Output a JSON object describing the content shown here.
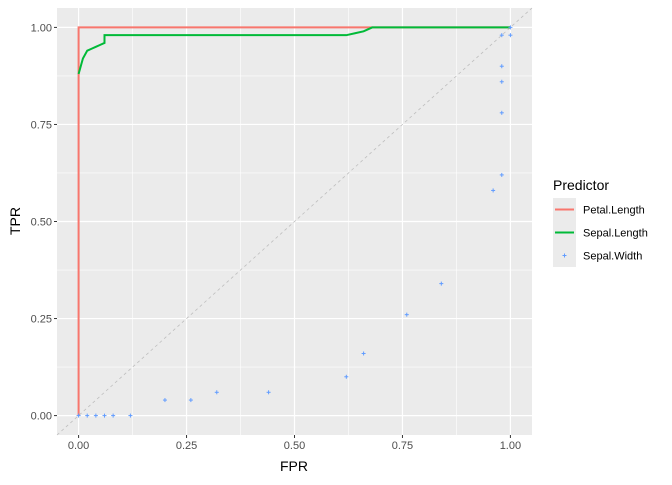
{
  "chart_data": {
    "type": "line",
    "title": "",
    "xlabel": "FPR",
    "ylabel": "TPR",
    "xlim": [
      -0.05,
      1.05
    ],
    "ylim": [
      -0.05,
      1.05
    ],
    "xticks": [
      "0.00",
      "0.25",
      "0.50",
      "0.75",
      "1.00"
    ],
    "yticks": [
      "0.00",
      "0.25",
      "0.50",
      "0.75",
      "1.00"
    ],
    "grid": true,
    "legend": {
      "title": "Predictor",
      "placement": "right"
    },
    "reference_line": {
      "type": "diagonal",
      "style": "dashed",
      "color": "#BEBEBE"
    },
    "series": [
      {
        "name": "Petal.Length",
        "kind": "line",
        "color": "#F8766D",
        "points": [
          [
            0,
            0
          ],
          [
            0,
            1
          ],
          [
            1,
            1
          ]
        ]
      },
      {
        "name": "Sepal.Length",
        "kind": "line",
        "color": "#00BA38",
        "points": [
          [
            0,
            0.88
          ],
          [
            0.005,
            0.9
          ],
          [
            0.01,
            0.92
          ],
          [
            0.02,
            0.94
          ],
          [
            0.03,
            0.945
          ],
          [
            0.04,
            0.95
          ],
          [
            0.05,
            0.955
          ],
          [
            0.06,
            0.96
          ],
          [
            0.06,
            0.98
          ],
          [
            0.62,
            0.98
          ],
          [
            0.64,
            0.985
          ],
          [
            0.66,
            0.99
          ],
          [
            0.68,
            1
          ],
          [
            1,
            1
          ]
        ]
      },
      {
        "name": "Sepal.Width",
        "kind": "point",
        "color": "#619CFF",
        "points": [
          [
            0,
            0
          ],
          [
            0.02,
            0
          ],
          [
            0.04,
            0
          ],
          [
            0.06,
            0
          ],
          [
            0.08,
            0
          ],
          [
            0.12,
            0
          ],
          [
            0.2,
            0.04
          ],
          [
            0.26,
            0.04
          ],
          [
            0.32,
            0.06
          ],
          [
            0.44,
            0.06
          ],
          [
            0.62,
            0.1
          ],
          [
            0.66,
            0.16
          ],
          [
            0.76,
            0.26
          ],
          [
            0.84,
            0.34
          ],
          [
            0.96,
            0.58
          ],
          [
            0.98,
            0.62
          ],
          [
            0.98,
            0.78
          ],
          [
            0.98,
            0.86
          ],
          [
            0.98,
            0.9
          ],
          [
            0.98,
            0.98
          ],
          [
            1,
            0.98
          ],
          [
            1,
            1
          ]
        ]
      }
    ]
  }
}
